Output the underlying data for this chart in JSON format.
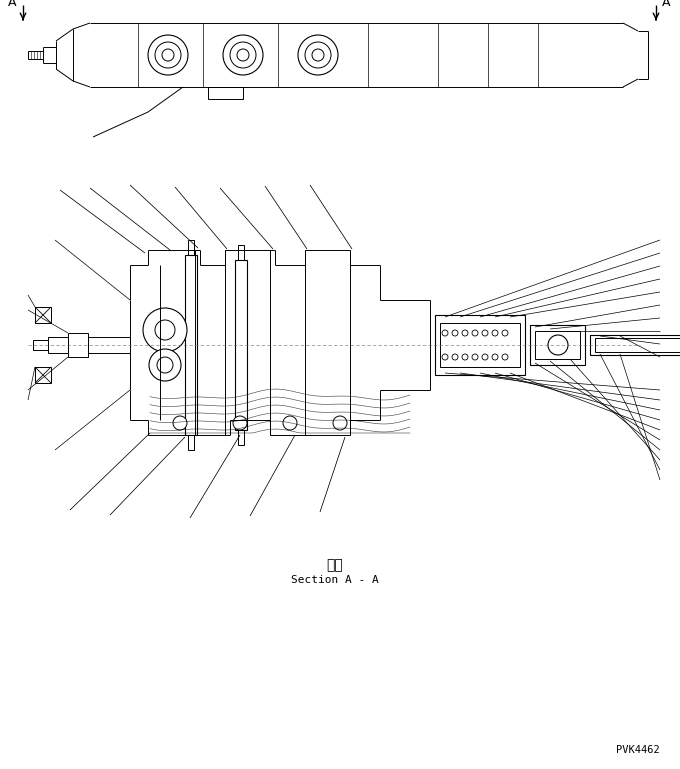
{
  "background_color": "#ffffff",
  "line_color": "#000000",
  "fig_width": 6.8,
  "fig_height": 7.69,
  "dpi": 100,
  "label_A_left": "A",
  "label_A_right": "A",
  "section_label_jp": "断面",
  "section_label_en": "Section A - A",
  "watermark": "PVK4462"
}
